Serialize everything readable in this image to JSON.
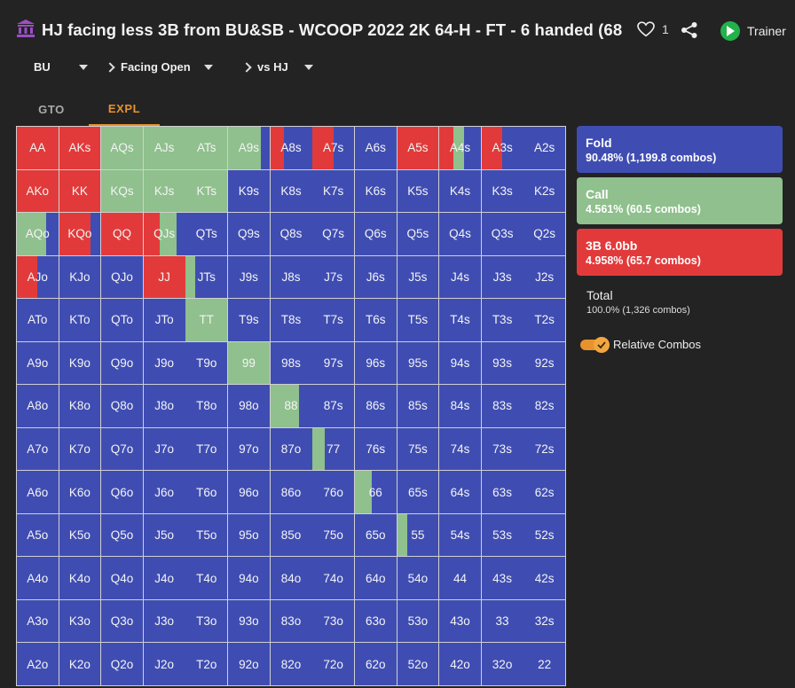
{
  "header": {
    "title": "HJ facing less 3B from BU&SB - WCOOP 2022 2K 64-H - FT - 6 handed (68",
    "title_icon": "bank-icon",
    "like_count": "1",
    "trainer_label": "Trainer"
  },
  "filters": {
    "position": "BU",
    "action": "Facing Open",
    "versus": "vs HJ"
  },
  "tabs": [
    {
      "label": "GTO",
      "active": false
    },
    {
      "label": "EXPL",
      "active": true
    }
  ],
  "colors": {
    "fold": "#3f4db2",
    "call": "#8fc08d",
    "raise": "#e23a3a",
    "accent": "#e8922e"
  },
  "legend": {
    "fold": {
      "name": "Fold",
      "value": "90.48% (1,199.8 combos)"
    },
    "call": {
      "name": "Call",
      "value": "4.561% (60.5 combos)"
    },
    "raise": {
      "name": "3B 6.0bb",
      "value": "4.958% (65.7 combos)"
    },
    "total": {
      "name": "Total",
      "value": "100.0% (1,326 combos)"
    },
    "relative_combos_label": "Relative Combos",
    "relative_combos_on": true
  },
  "grid": {
    "rows": [
      [
        "AA",
        "AKs",
        "AQs",
        "AJs",
        "ATs",
        "A9s",
        "A8s",
        "A7s",
        "A6s",
        "A5s",
        "A4s",
        "A3s",
        "A2s"
      ],
      [
        "AKo",
        "KK",
        "KQs",
        "KJs",
        "KTs",
        "K9s",
        "K8s",
        "K7s",
        "K6s",
        "K5s",
        "K4s",
        "K3s",
        "K2s"
      ],
      [
        "AQo",
        "KQo",
        "QQ",
        "QJs",
        "QTs",
        "Q9s",
        "Q8s",
        "Q7s",
        "Q6s",
        "Q5s",
        "Q4s",
        "Q3s",
        "Q2s"
      ],
      [
        "AJo",
        "KJo",
        "QJo",
        "JJ",
        "JTs",
        "J9s",
        "J8s",
        "J7s",
        "J6s",
        "J5s",
        "J4s",
        "J3s",
        "J2s"
      ],
      [
        "ATo",
        "KTo",
        "QTo",
        "JTo",
        "TT",
        "T9s",
        "T8s",
        "T7s",
        "T6s",
        "T5s",
        "T4s",
        "T3s",
        "T2s"
      ],
      [
        "A9o",
        "K9o",
        "Q9o",
        "J9o",
        "T9o",
        "99",
        "98s",
        "97s",
        "96s",
        "95s",
        "94s",
        "93s",
        "92s"
      ],
      [
        "A8o",
        "K8o",
        "Q8o",
        "J8o",
        "T8o",
        "98o",
        "88",
        "87s",
        "86s",
        "85s",
        "84s",
        "83s",
        "82s"
      ],
      [
        "A7o",
        "K7o",
        "Q7o",
        "J7o",
        "T7o",
        "97o",
        "87o",
        "77",
        "76s",
        "75s",
        "74s",
        "73s",
        "72s"
      ],
      [
        "A6o",
        "K6o",
        "Q6o",
        "J6o",
        "T6o",
        "96o",
        "86o",
        "76o",
        "66",
        "65s",
        "64s",
        "63s",
        "62s"
      ],
      [
        "A5o",
        "K5o",
        "Q5o",
        "J5o",
        "T5o",
        "95o",
        "85o",
        "75o",
        "65o",
        "55",
        "54s",
        "53s",
        "52s"
      ],
      [
        "A4o",
        "K4o",
        "Q4o",
        "J4o",
        "T4o",
        "94o",
        "84o",
        "74o",
        "64o",
        "54o",
        "44",
        "43s",
        "42s"
      ],
      [
        "A3o",
        "K3o",
        "Q3o",
        "J3o",
        "T3o",
        "93o",
        "83o",
        "73o",
        "63o",
        "53o",
        "43o",
        "33",
        "32s"
      ],
      [
        "A2o",
        "K2o",
        "Q2o",
        "J2o",
        "T2o",
        "92o",
        "82o",
        "72o",
        "62o",
        "52o",
        "42o",
        "32o",
        "22"
      ]
    ],
    "mix": {
      "AA": {
        "r": 1
      },
      "AKs": {
        "r": 1
      },
      "AQs": {
        "c": 1
      },
      "AJs": {
        "c": 1
      },
      "ATs": {
        "c": 1
      },
      "A9s": {
        "f": 0.2,
        "c": 0.8
      },
      "A8s": {
        "f": 0.67,
        "r": 0.33
      },
      "A7s": {
        "f": 0.5,
        "r": 0.5
      },
      "A5s": {
        "r": 1
      },
      "A4s": {
        "f": 0.4,
        "c": 0.25,
        "r": 0.35
      },
      "A3s": {
        "f": 0.5,
        "r": 0.5
      },
      "AKo": {
        "r": 1
      },
      "KK": {
        "r": 1
      },
      "KQs": {
        "c": 1
      },
      "KJs": {
        "c": 1
      },
      "KTs": {
        "c": 1
      },
      "AQo": {
        "f": 0.3,
        "c": 0.7
      },
      "KQo": {
        "f": 0.25,
        "r": 0.75
      },
      "QQ": {
        "r": 1
      },
      "QJs": {
        "r": 0.4,
        "f": 0.2,
        "c": 0.4
      },
      "AJo": {
        "f": 0.5,
        "r": 0.5
      },
      "JJ": {
        "r": 1
      },
      "JTs": {
        "f": 0.78,
        "c": 0.22
      },
      "TT": {
        "c": 1
      },
      "99": {
        "c": 1
      },
      "88": {
        "f": 0.3,
        "c": 0.7
      },
      "77": {
        "f": 0.7,
        "c": 0.3
      },
      "66": {
        "f": 0.6,
        "c": 0.4
      },
      "55": {
        "f": 0.75,
        "c": 0.25
      },
      "44": {
        "f": 1
      },
      "33": {
        "f": 1
      },
      "22": {
        "f": 1
      }
    }
  }
}
